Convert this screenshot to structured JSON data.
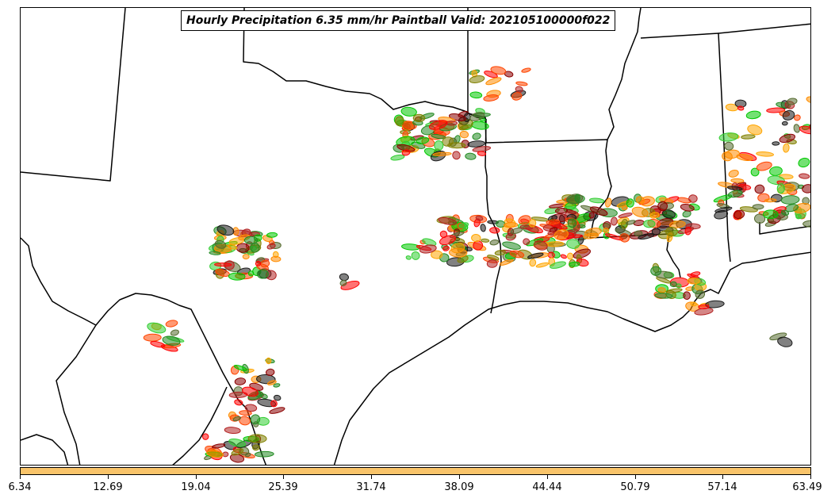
{
  "title": "Hourly Precipitation 6.35 mm/hr Paintball Valid: 202105100000f022",
  "colorbar": {
    "color": "#f9c46a",
    "ticks": [
      "6.34",
      "12.69",
      "19.04",
      "25.39",
      "31.74",
      "38.09",
      "44.44",
      "50.79",
      "57.14",
      "63.49"
    ]
  },
  "map": {
    "background": "#ffffff",
    "boundary_color": "#000000",
    "member_colors": [
      "#00c800",
      "#228b22",
      "#808000",
      "#ff0000",
      "#b22222",
      "#8b0000",
      "#ff8c00",
      "#ffa500",
      "#ff4500",
      "#1a1a1a",
      "#556b2f",
      "#32cd32"
    ]
  }
}
